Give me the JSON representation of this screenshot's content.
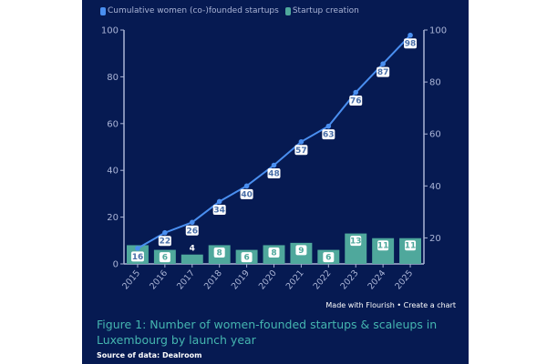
{
  "chart_data": {
    "type": "bar+line",
    "title": "Figure 1: Number of women-founded startups & scaleups in Luxembourg by launch year",
    "source": "Source of data: Dealroom",
    "credit": {
      "made_with": "Made with Flourish",
      "separator": "•",
      "create": "Create a chart"
    },
    "categories": [
      "2015",
      "2016",
      "2017",
      "2018",
      "2019",
      "2020",
      "2021",
      "2022",
      "2023",
      "2024",
      "2025"
    ],
    "series": [
      {
        "name": "Startup creation",
        "type": "bar",
        "axis": "left",
        "color": "#4fa89c",
        "values": [
          8,
          6,
          4,
          8,
          6,
          8,
          9,
          6,
          13,
          11,
          11
        ],
        "labels": [
          "",
          "6",
          "4",
          "8",
          "6",
          "8",
          "9",
          "6",
          "13",
          "11",
          "11"
        ]
      },
      {
        "name": "Cumulative women (co-)founded startups",
        "type": "line",
        "axis": "right",
        "color": "#4a8ff0",
        "values": [
          16,
          22,
          26,
          34,
          40,
          48,
          57,
          63,
          76,
          87,
          98
        ]
      }
    ],
    "left_axis": {
      "ylim": [
        0,
        100
      ],
      "ticks": [
        0,
        20,
        40,
        60,
        80,
        100
      ]
    },
    "right_axis": {
      "ylim": [
        10,
        100
      ],
      "ticks": [
        20,
        40,
        60,
        80,
        100
      ]
    },
    "legend": {
      "placement": "top-left",
      "entries": [
        {
          "label": "Cumulative women (co-)founded startups",
          "color": "#4a8ff0"
        },
        {
          "label": "Startup creation",
          "color": "#4fa89c"
        }
      ]
    },
    "grid": false
  }
}
